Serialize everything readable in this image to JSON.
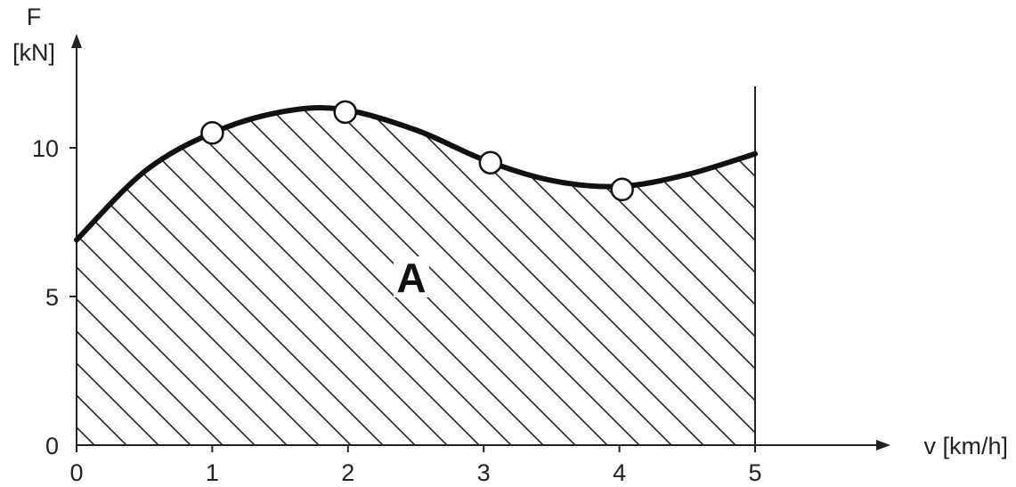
{
  "chart_data": {
    "type": "area",
    "title": "",
    "ylabel_symbol": "F",
    "ylabel_unit": "[kN]",
    "xlabel": "v [km/h]",
    "xlim": [
      0,
      5
    ],
    "ylim": [
      0,
      12
    ],
    "x_ticks": [
      0,
      1,
      2,
      3,
      4,
      5
    ],
    "y_ticks": [
      0,
      5,
      10
    ],
    "grid": false,
    "hatched_area": true,
    "area_label": "A",
    "series": [
      {
        "curve": {
          "x": [
            0,
            0.5,
            1.0,
            1.5,
            1.95,
            2.5,
            3.0,
            3.5,
            4.0,
            4.5,
            5.0
          ],
          "y": [
            6.9,
            9.2,
            10.5,
            11.2,
            11.3,
            10.6,
            9.6,
            8.9,
            8.7,
            9.1,
            9.8
          ]
        },
        "markers": {
          "x": [
            1.0,
            1.98,
            3.05,
            4.02
          ],
          "y": [
            10.5,
            11.2,
            9.5,
            8.6
          ]
        }
      }
    ]
  },
  "colors": {
    "line": "#111111",
    "hatch": "#222222",
    "marker_fill": "#ffffff"
  }
}
